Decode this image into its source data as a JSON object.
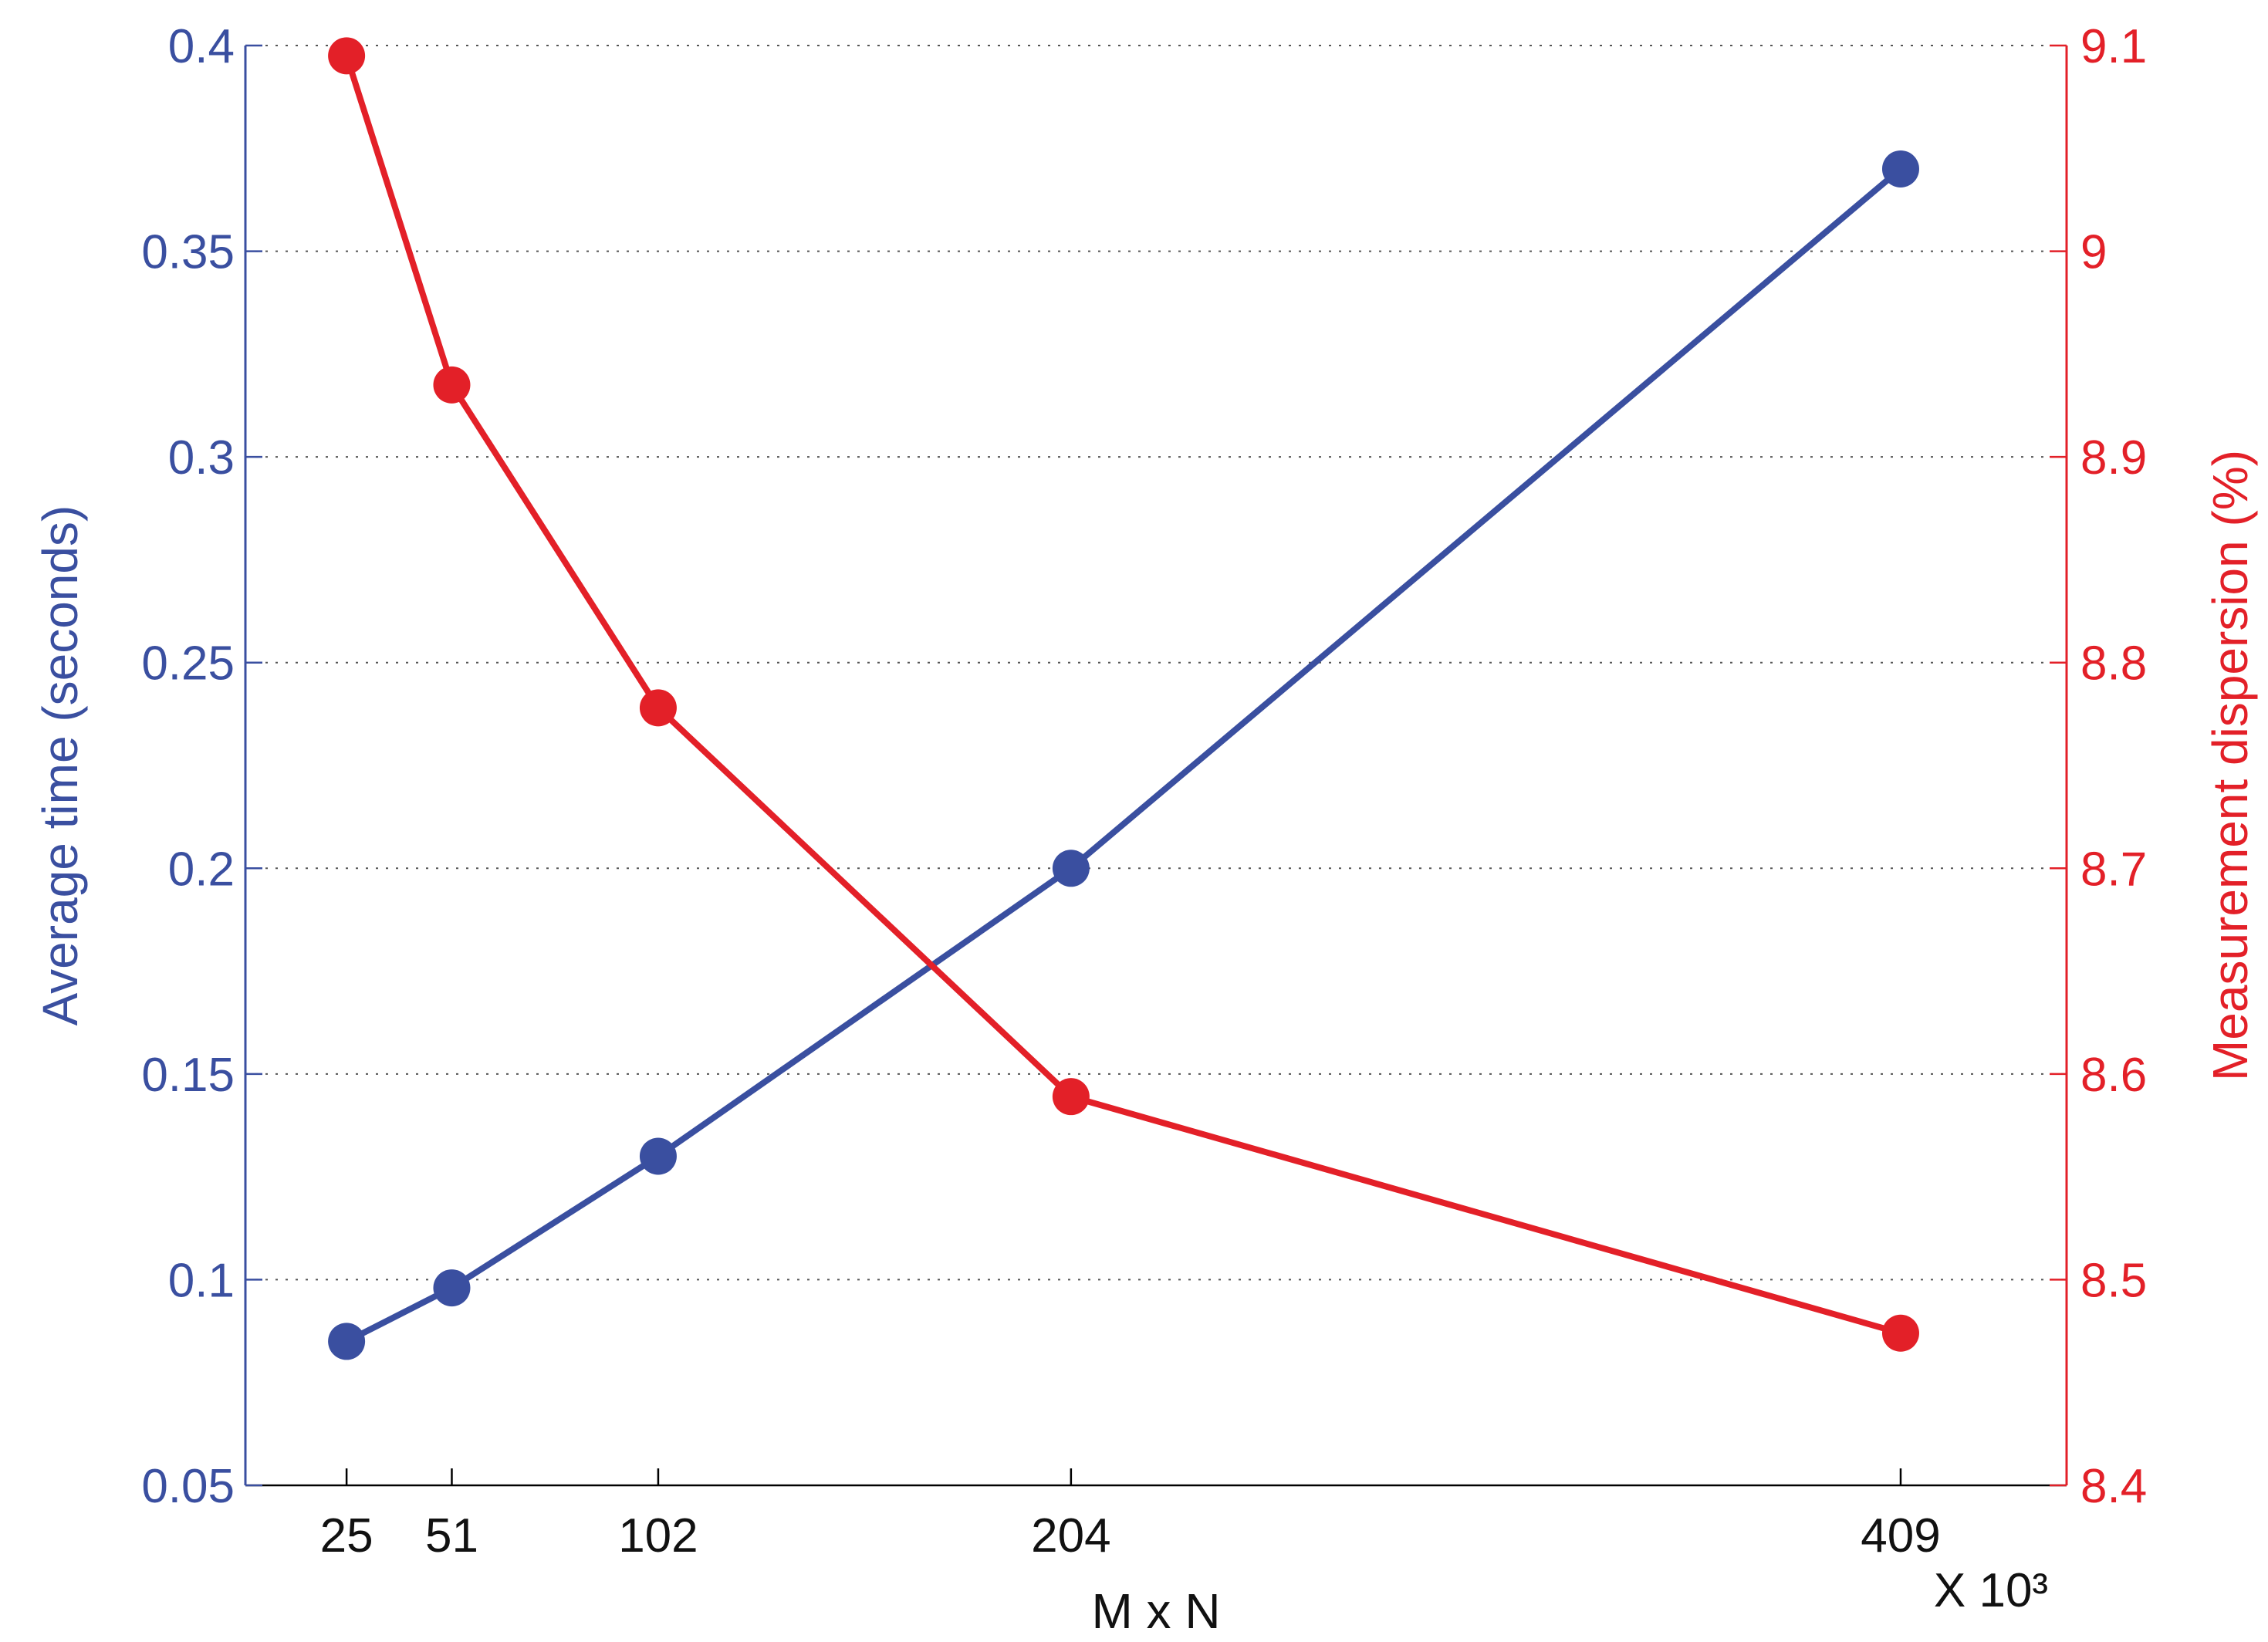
{
  "chart_data": {
    "type": "line",
    "title": "",
    "xlabel": "M x N",
    "x_multiplier": "X 10³",
    "x": [
      25,
      51,
      102,
      204,
      409
    ],
    "x_tick_labels": [
      "25",
      "51",
      "102",
      "204",
      "409"
    ],
    "xlim": [
      0,
      450
    ],
    "grid": "horizontal-dotted",
    "legend": "none",
    "left_axis": {
      "label": "Average time (seconds)",
      "color": "#3a4fa0",
      "ylim": [
        0.05,
        0.4
      ],
      "ticks": [
        0.05,
        0.1,
        0.15,
        0.2,
        0.25,
        0.3,
        0.35,
        0.4
      ],
      "tick_labels": [
        "0.05",
        "0.1",
        "0.15",
        "0.2",
        "0.25",
        "0.3",
        "0.35",
        "0.4"
      ]
    },
    "right_axis": {
      "label": "Measurement dispersion (%)",
      "color": "#e32028",
      "ylim": [
        8.4,
        9.1
      ],
      "ticks": [
        8.4,
        8.5,
        8.6,
        8.7,
        8.8,
        8.9,
        9.0,
        9.1
      ],
      "tick_labels": [
        "8.4",
        "8.5",
        "8.6",
        "8.7",
        "8.8",
        "8.9",
        "9",
        "9.1"
      ]
    },
    "series": [
      {
        "axis": "left",
        "color": "#3a4fa0",
        "values": [
          0.085,
          0.098,
          0.13,
          0.2,
          0.37
        ]
      },
      {
        "axis": "right",
        "color": "#e32028",
        "values": [
          9.095,
          8.935,
          8.778,
          8.589,
          8.474
        ]
      }
    ]
  }
}
